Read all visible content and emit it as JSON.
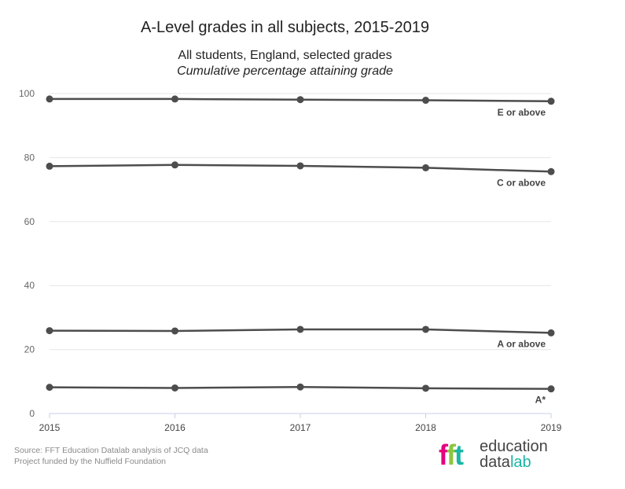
{
  "title": "A-Level grades in all subjects, 2015-2019",
  "subtitle": "All students, England, selected grades",
  "subtitle2": "Cumulative percentage attaining grade",
  "footer": {
    "source": "Source: FFT Education Datalab analysis of JCQ data",
    "funding": "Project funded by the Nuffield Foundation"
  },
  "logo": {
    "mark": "fft",
    "line1": "education",
    "line2a": "data",
    "line2b": "lab",
    "colors": [
      "#e6007e",
      "#8dc63f",
      "#19b5a5"
    ]
  },
  "chart_data": {
    "type": "line",
    "x": [
      "2015",
      "2016",
      "2017",
      "2018",
      "2019"
    ],
    "ylim": [
      0,
      100
    ],
    "yticks": [
      0,
      20,
      40,
      60,
      80,
      100
    ],
    "grid": true,
    "line_color": "#4d4d4d",
    "series": [
      {
        "name": "E or above",
        "values": [
          98.3,
          98.3,
          98.1,
          97.9,
          97.6
        ]
      },
      {
        "name": "C or above",
        "values": [
          77.3,
          77.7,
          77.4,
          76.8,
          75.6
        ]
      },
      {
        "name": "A or above",
        "values": [
          25.9,
          25.8,
          26.3,
          26.3,
          25.2
        ]
      },
      {
        "name": "A*",
        "values": [
          8.2,
          8.0,
          8.3,
          7.9,
          7.7
        ]
      }
    ]
  }
}
